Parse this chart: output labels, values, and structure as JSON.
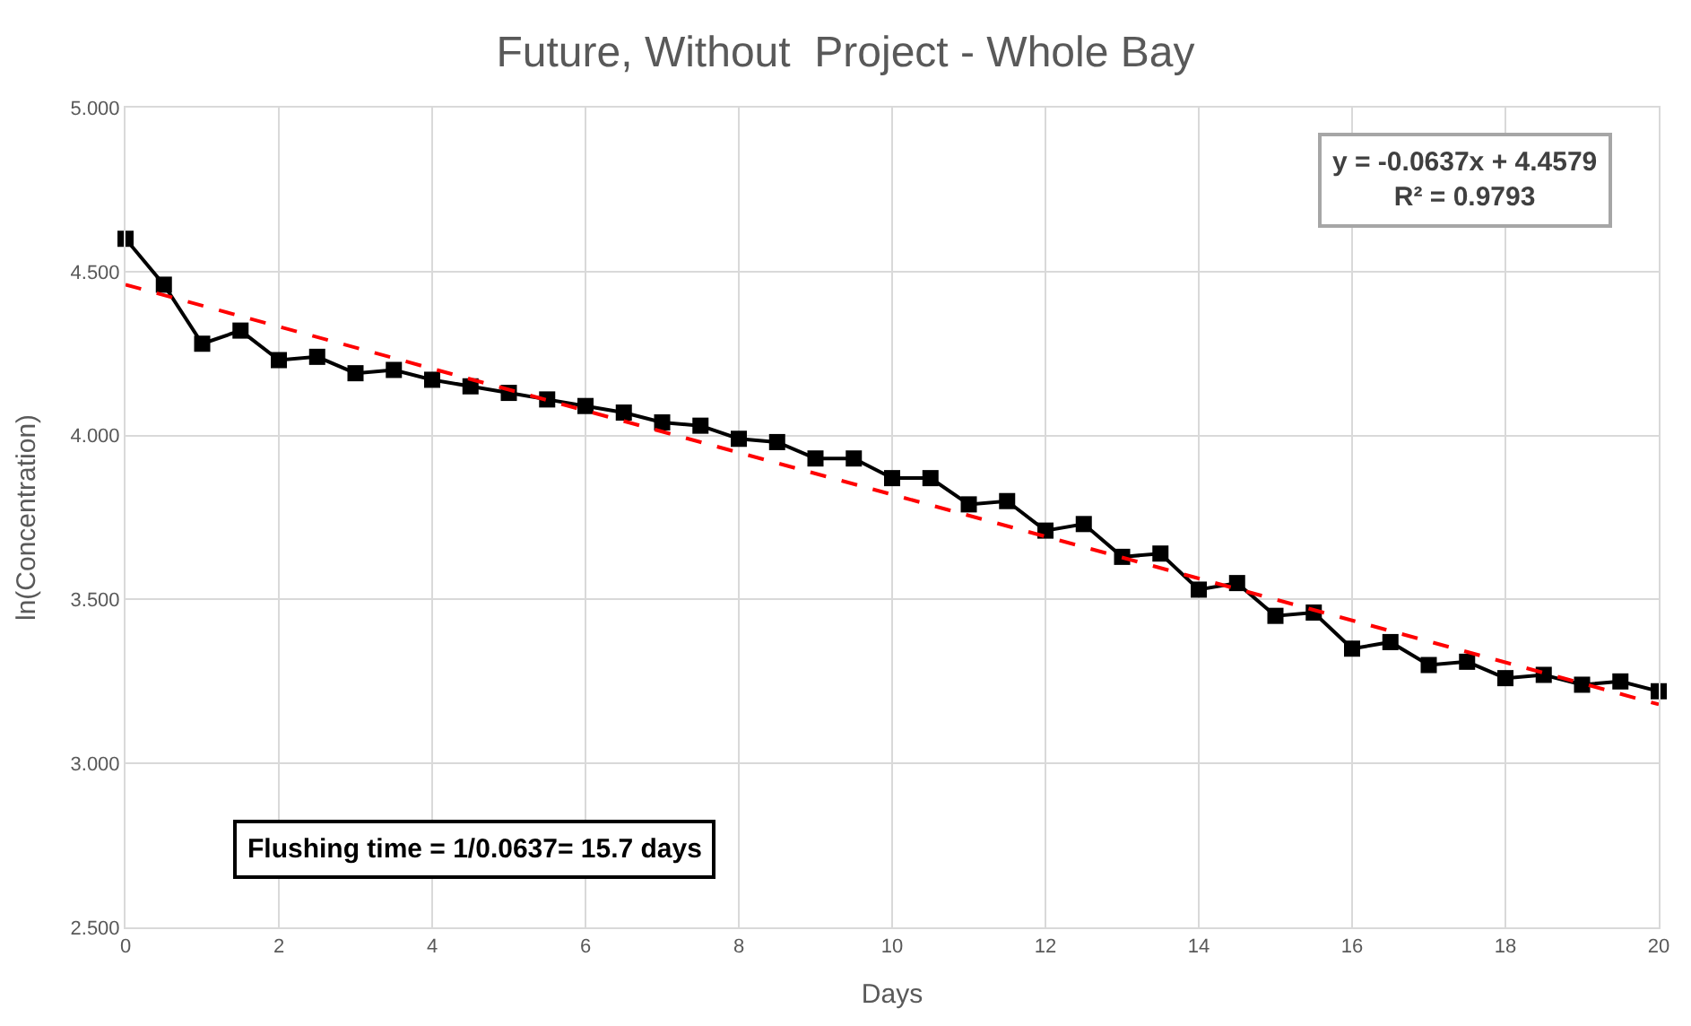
{
  "chart_data": {
    "type": "line",
    "title": "Future, Without  Project - Whole Bay",
    "xlabel": "Days",
    "ylabel": "ln(Concentration)",
    "xlim": [
      0,
      20
    ],
    "xticks": [
      0,
      2,
      4,
      6,
      8,
      10,
      12,
      14,
      16,
      18,
      20
    ],
    "ylim": [
      2.5,
      5.0
    ],
    "yticks": [
      {
        "value": 2.5,
        "label": "2.500"
      },
      {
        "value": 3.0,
        "label": "3.000"
      },
      {
        "value": 3.5,
        "label": "3.500"
      },
      {
        "value": 4.0,
        "label": "4.000"
      },
      {
        "value": 4.5,
        "label": "4.500"
      },
      {
        "value": 5.0,
        "label": "5.000"
      }
    ],
    "grid": true,
    "series": [
      {
        "color": "#000000",
        "marker": "square",
        "line_style": "solid",
        "x": [
          0,
          0.5,
          1,
          1.5,
          2,
          2.5,
          3,
          3.5,
          4,
          4.5,
          5,
          5.5,
          6,
          6.5,
          7,
          7.5,
          8,
          8.5,
          9,
          9.5,
          10,
          10.5,
          11,
          11.5,
          12,
          12.5,
          13,
          13.5,
          14,
          14.5,
          15,
          15.5,
          16,
          16.5,
          17,
          17.5,
          18,
          18.5,
          19,
          19.5,
          20
        ],
        "values": [
          4.6,
          4.46,
          4.28,
          4.32,
          4.23,
          4.24,
          4.19,
          4.2,
          4.17,
          4.15,
          4.13,
          4.11,
          4.09,
          4.07,
          4.04,
          4.03,
          3.99,
          3.98,
          3.93,
          3.93,
          3.87,
          3.87,
          3.79,
          3.8,
          3.71,
          3.73,
          3.63,
          3.64,
          3.53,
          3.55,
          3.45,
          3.46,
          3.35,
          3.37,
          3.3,
          3.31,
          3.26,
          3.27,
          3.24,
          3.25,
          3.22
        ]
      },
      {
        "color": "#ff0000",
        "marker": "none",
        "line_style": "dashed",
        "x": [
          0,
          20
        ],
        "values": [
          4.46,
          3.18
        ]
      }
    ],
    "annotations": [
      "y = -0.0637x + 4.4579\nR² = 0.9793",
      "Flushing time = 1/0.0637= 15.7 days"
    ]
  }
}
